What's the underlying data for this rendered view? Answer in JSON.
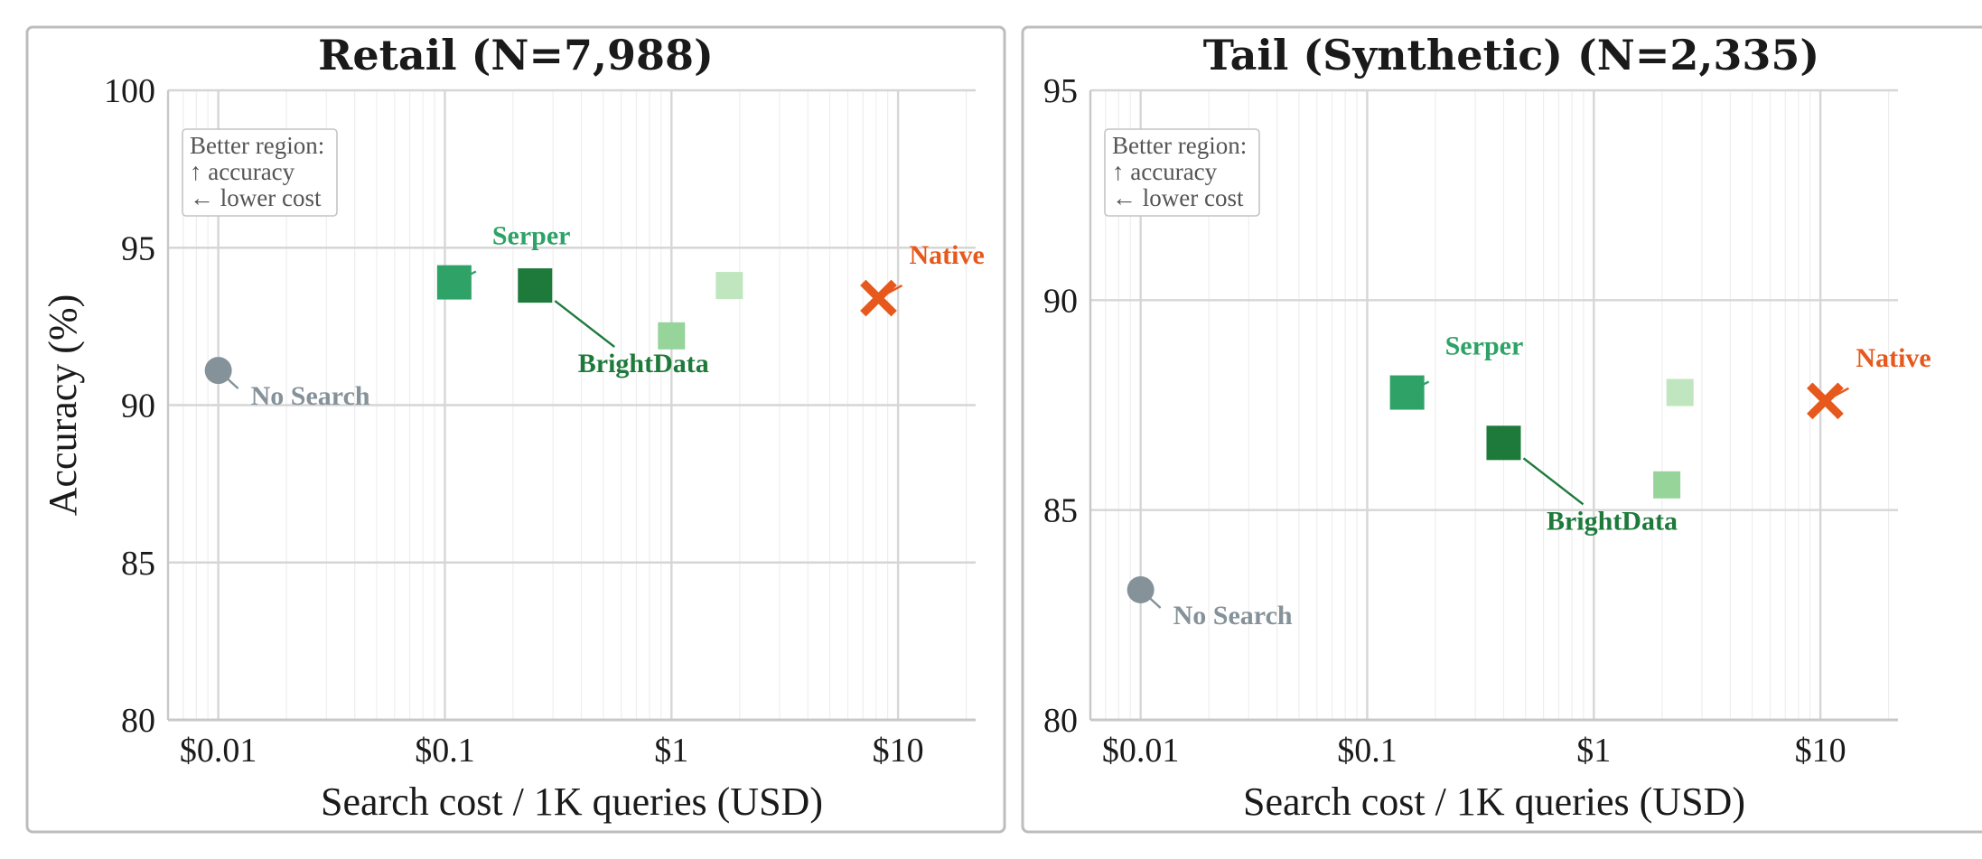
{
  "chart_data": [
    {
      "type": "scatter",
      "title": "Retail (N=7,988)",
      "xlabel": "Search cost / 1K queries (USD)",
      "ylabel": "Accuracy (%)",
      "x_scale": "log",
      "xlim": [
        0.006,
        22
      ],
      "ylim": [
        80,
        100
      ],
      "xticks": [
        {
          "value": 0.01,
          "label": "$0.01"
        },
        {
          "value": 0.1,
          "label": "$0.1"
        },
        {
          "value": 1,
          "label": "$1"
        },
        {
          "value": 10,
          "label": "$10"
        }
      ],
      "yticks": [
        {
          "value": 80,
          "label": "80"
        },
        {
          "value": 85,
          "label": "85"
        },
        {
          "value": 90,
          "label": "90"
        },
        {
          "value": 95,
          "label": "95"
        },
        {
          "value": 100,
          "label": "100"
        }
      ],
      "grid": true,
      "annotation": [
        "Better region:",
        "↑ accuracy",
        "← lower cost"
      ],
      "points": [
        {
          "label": "No Search",
          "x": 0.01,
          "y": 91.1,
          "marker": "circle",
          "color": "#85929a"
        },
        {
          "label": "Serper",
          "x": 0.11,
          "y": 93.9,
          "marker": "square",
          "color": "#2fa367"
        },
        {
          "label": "BrightData",
          "x": 0.25,
          "y": 93.8,
          "marker": "square",
          "color": "#1d7a3a"
        },
        {
          "label": "",
          "x": 1.0,
          "y": 92.2,
          "marker": "square",
          "color": "#96d49a"
        },
        {
          "label": "",
          "x": 1.8,
          "y": 93.8,
          "marker": "square",
          "color": "#bfe6bf"
        },
        {
          "label": "Native",
          "x": 8.2,
          "y": 93.4,
          "marker": "x",
          "color": "#e6581c"
        }
      ]
    },
    {
      "type": "scatter",
      "title": "Tail (Synthetic) (N=2,335)",
      "xlabel": "Search cost / 1K queries (USD)",
      "ylabel": "",
      "x_scale": "log",
      "xlim": [
        0.006,
        22
      ],
      "ylim": [
        80,
        95
      ],
      "xticks": [
        {
          "value": 0.01,
          "label": "$0.01"
        },
        {
          "value": 0.1,
          "label": "$0.1"
        },
        {
          "value": 1,
          "label": "$1"
        },
        {
          "value": 10,
          "label": "$10"
        }
      ],
      "yticks": [
        {
          "value": 80,
          "label": "80"
        },
        {
          "value": 85,
          "label": "85"
        },
        {
          "value": 90,
          "label": "90"
        },
        {
          "value": 95,
          "label": "95"
        }
      ],
      "grid": true,
      "annotation": [
        "Better region:",
        "↑ accuracy",
        "← lower cost"
      ],
      "points": [
        {
          "label": "No Search",
          "x": 0.01,
          "y": 83.1,
          "marker": "circle",
          "color": "#85929a"
        },
        {
          "label": "Serper",
          "x": 0.15,
          "y": 87.8,
          "marker": "square",
          "color": "#2fa367"
        },
        {
          "label": "BrightData",
          "x": 0.4,
          "y": 86.6,
          "marker": "square",
          "color": "#1d7a3a"
        },
        {
          "label": "",
          "x": 2.1,
          "y": 85.6,
          "marker": "square",
          "color": "#96d49a"
        },
        {
          "label": "",
          "x": 2.4,
          "y": 87.8,
          "marker": "square",
          "color": "#bfe6bf"
        },
        {
          "label": "Native",
          "x": 10.5,
          "y": 87.6,
          "marker": "x",
          "color": "#e6581c"
        }
      ]
    }
  ]
}
